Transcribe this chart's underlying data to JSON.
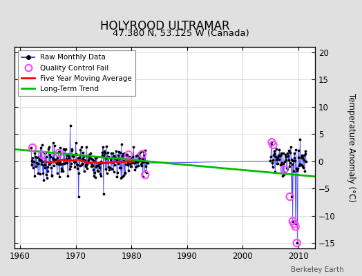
{
  "title": "HOLYROOD ULTRAMAR",
  "subtitle": "47.380 N, 53.125 W (Canada)",
  "ylabel": "Temperature Anomaly (°C)",
  "watermark": "Berkeley Earth",
  "xlim": [
    1959,
    2013
  ],
  "ylim": [
    -16,
    21
  ],
  "yticks": [
    -15,
    -10,
    -5,
    0,
    5,
    10,
    15,
    20
  ],
  "xticks": [
    1960,
    1970,
    1980,
    1990,
    2000,
    2010
  ],
  "bg_color": "#e0e0e0",
  "plot_bg_color": "#ffffff",
  "raw_color": "#4444ff",
  "raw_marker_color": "#000000",
  "qc_color": "#ff44ff",
  "moving_avg_color": "#ff0000",
  "trend_color": "#00bb00",
  "trend_x": [
    1959,
    2013
  ],
  "trend_y": [
    2.2,
    -2.8
  ]
}
